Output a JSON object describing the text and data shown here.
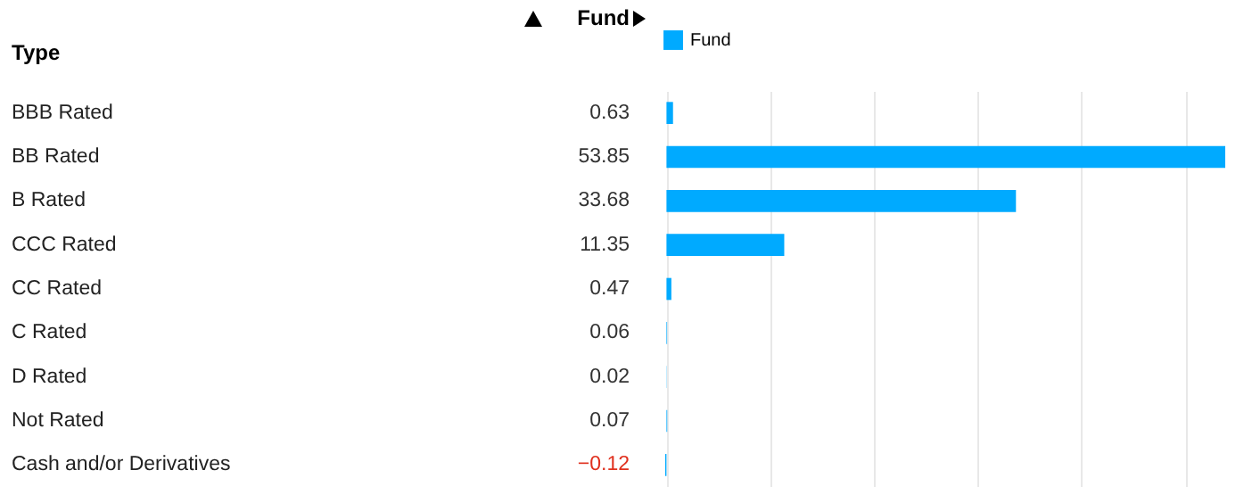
{
  "chart_data": {
    "type": "bar",
    "orientation": "horizontal",
    "ylabel": "Type",
    "annotations": [
      "Fund"
    ],
    "categories": [
      "BBB Rated",
      "BB Rated",
      "B Rated",
      "CCC Rated",
      "CC Rated",
      "C Rated",
      "D Rated",
      "Not Rated",
      "Cash and/or Derivatives"
    ],
    "series": [
      {
        "name": "Fund",
        "color": "#00aaff",
        "values": [
          0.63,
          53.85,
          33.68,
          11.35,
          0.47,
          0.06,
          0.02,
          0.07,
          -0.12
        ]
      }
    ],
    "grid": "x",
    "legend": "top left",
    "tick_labels": "y",
    "data_labels": true
  }
}
